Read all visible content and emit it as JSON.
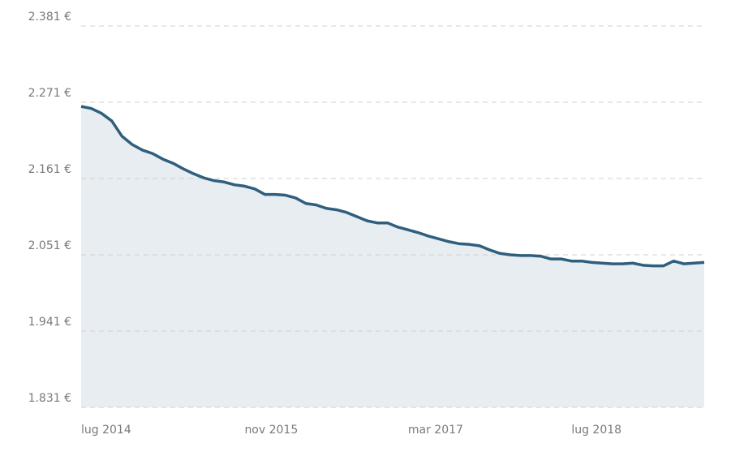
{
  "chart_data": {
    "type": "area-line",
    "x": [
      "2014-07",
      "2014-08",
      "2014-09",
      "2014-10",
      "2014-11",
      "2014-12",
      "2015-01",
      "2015-02",
      "2015-03",
      "2015-04",
      "2015-05",
      "2015-06",
      "2015-07",
      "2015-08",
      "2015-09",
      "2015-10",
      "2015-11",
      "2015-12",
      "2016-01",
      "2016-02",
      "2016-03",
      "2016-04",
      "2016-05",
      "2016-06",
      "2016-07",
      "2016-08",
      "2016-09",
      "2016-10",
      "2016-11",
      "2016-12",
      "2017-01",
      "2017-02",
      "2017-03",
      "2017-04",
      "2017-05",
      "2017-06",
      "2017-07",
      "2017-08",
      "2017-09",
      "2017-10",
      "2017-11",
      "2017-12",
      "2018-01",
      "2018-02",
      "2018-03",
      "2018-04",
      "2018-05",
      "2018-06",
      "2018-07",
      "2018-08",
      "2018-09",
      "2018-10",
      "2018-11",
      "2018-12",
      "2019-01",
      "2019-02",
      "2019-03",
      "2019-04",
      "2019-05",
      "2019-06",
      "2019-07",
      "2019-08"
    ],
    "values": [
      2265,
      2262,
      2255,
      2244,
      2222,
      2210,
      2202,
      2197,
      2189,
      2183,
      2175,
      2168,
      2162,
      2158,
      2156,
      2152,
      2150,
      2146,
      2138,
      2138,
      2137,
      2133,
      2125,
      2123,
      2118,
      2116,
      2112,
      2106,
      2100,
      2097,
      2097,
      2091,
      2087,
      2083,
      2078,
      2074,
      2070,
      2067,
      2066,
      2064,
      2058,
      2053,
      2051,
      2050,
      2050,
      2049,
      2045,
      2045,
      2042,
      2042,
      2040,
      2039,
      2038,
      2038,
      2039,
      2036,
      2035,
      2035,
      2042,
      2038,
      2039,
      2040
    ],
    "color": "#2f5f7e",
    "fill_color": "#e8edf1",
    "xlim": [
      "2014-07",
      "2019-08"
    ],
    "xticks": [
      {
        "value": "2014-07",
        "label": "lug 2014"
      },
      {
        "value": "2015-11",
        "label": "nov 2015"
      },
      {
        "value": "2017-03",
        "label": "mar 2017"
      },
      {
        "value": "2018-07",
        "label": "lug 2018"
      }
    ],
    "ylim": [
      1831,
      2381
    ],
    "yticks": [
      {
        "value": 1831,
        "label": "1.831 €"
      },
      {
        "value": 1941,
        "label": "1.941 €"
      },
      {
        "value": 2051,
        "label": "2.051 €"
      },
      {
        "value": 2161,
        "label": "2.161 €"
      },
      {
        "value": 2271,
        "label": "2.271 €"
      },
      {
        "value": 2381,
        "label": "2.381 €"
      }
    ],
    "grid": true
  }
}
